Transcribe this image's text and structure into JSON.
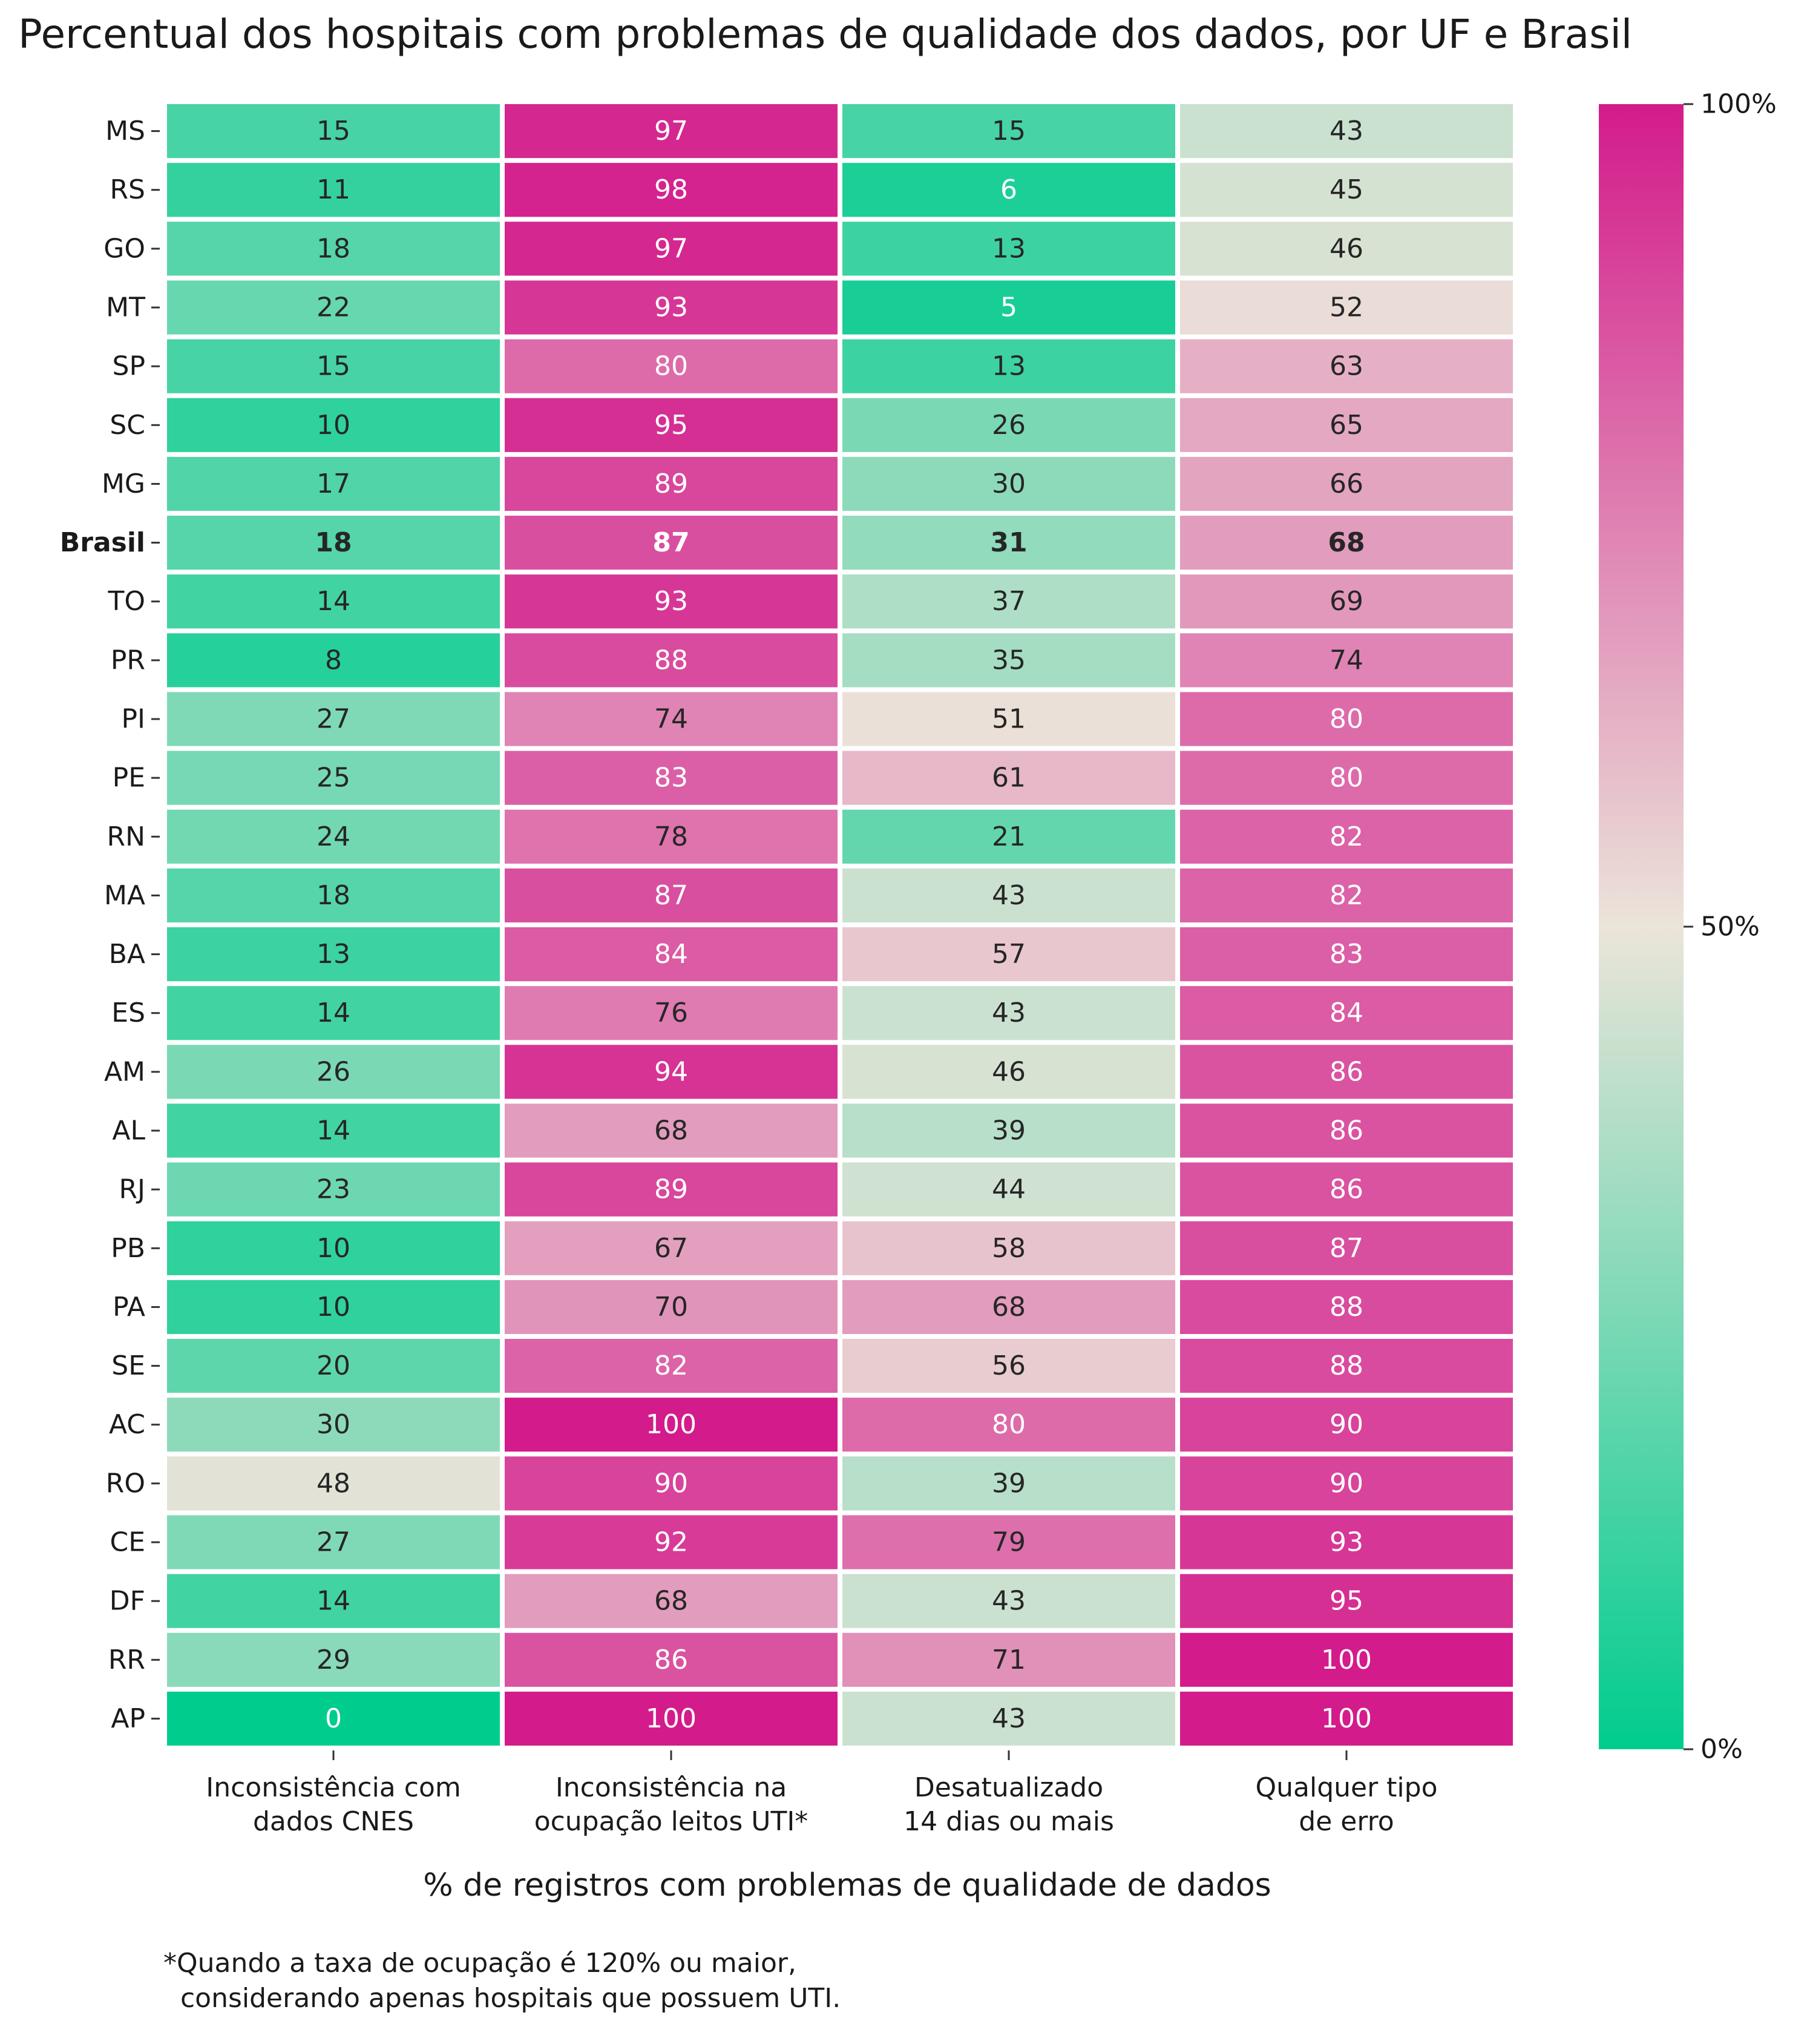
{
  "title": "Percentual dos hospitais com problemas de qualidade dos dados, por UF e Brasil",
  "xlabel": "% de registros com problemas de qualidade de dados",
  "footnote": "*Quando a taxa de ocupação é 120% ou maior,\n  considerando apenas hospitais que possuem UTI.",
  "chart_data": {
    "type": "heatmap",
    "columns": [
      [
        "Inconsistência com",
        "dados CNES"
      ],
      [
        "Inconsistência na",
        "ocupação leitos UTI*"
      ],
      [
        "Desatualizado",
        "14 dias ou mais"
      ],
      [
        "Qualquer tipo",
        "de erro"
      ]
    ],
    "rows": [
      "MS",
      "RS",
      "GO",
      "MT",
      "SP",
      "SC",
      "MG",
      "Brasil",
      "TO",
      "PR",
      "PI",
      "PE",
      "RN",
      "MA",
      "BA",
      "ES",
      "AM",
      "AL",
      "RJ",
      "PB",
      "PA",
      "SE",
      "AC",
      "RO",
      "CE",
      "DF",
      "RR",
      "AP"
    ],
    "highlight_row": "Brasil",
    "values": [
      [
        15,
        97,
        15,
        43
      ],
      [
        11,
        98,
        6,
        45
      ],
      [
        18,
        97,
        13,
        46
      ],
      [
        22,
        93,
        5,
        52
      ],
      [
        15,
        80,
        13,
        63
      ],
      [
        10,
        95,
        26,
        65
      ],
      [
        17,
        89,
        30,
        66
      ],
      [
        18,
        87,
        31,
        68
      ],
      [
        14,
        93,
        37,
        69
      ],
      [
        8,
        88,
        35,
        74
      ],
      [
        27,
        74,
        51,
        80
      ],
      [
        25,
        83,
        61,
        80
      ],
      [
        24,
        78,
        21,
        82
      ],
      [
        18,
        87,
        43,
        82
      ],
      [
        13,
        84,
        57,
        83
      ],
      [
        14,
        76,
        43,
        84
      ],
      [
        26,
        94,
        46,
        86
      ],
      [
        14,
        68,
        39,
        86
      ],
      [
        23,
        89,
        44,
        86
      ],
      [
        10,
        67,
        58,
        87
      ],
      [
        10,
        70,
        68,
        88
      ],
      [
        20,
        82,
        56,
        88
      ],
      [
        30,
        100,
        80,
        90
      ],
      [
        48,
        90,
        39,
        90
      ],
      [
        27,
        92,
        79,
        93
      ],
      [
        14,
        68,
        43,
        95
      ],
      [
        29,
        86,
        71,
        100
      ],
      [
        0,
        100,
        43,
        100
      ]
    ],
    "colorscale": {
      "min": 0,
      "mid": 50,
      "max": 100,
      "low": "#00cc8e",
      "midColor": "#ebe4d9",
      "high": "#d31b8b"
    },
    "colorbar_ticks": [
      "0%",
      "50%",
      "100%"
    ],
    "grid": false
  }
}
